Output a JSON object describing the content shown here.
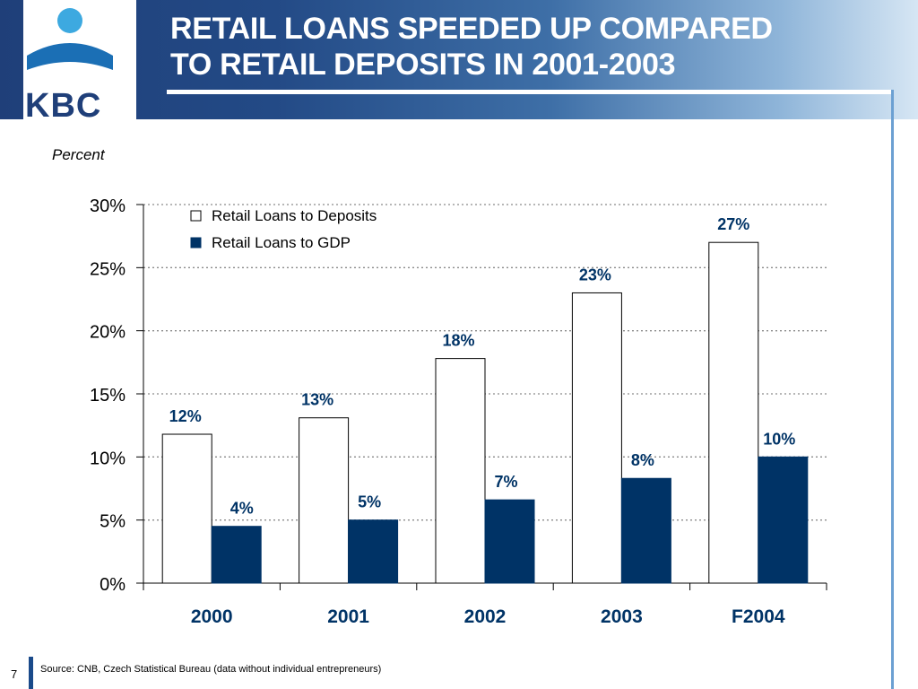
{
  "header": {
    "title_line1": "RETAIL LOANS SPEEDED UP COMPARED",
    "title_line2": "TO RETAIL DEPOSITS IN 2001-2003",
    "logo_text": "KBC"
  },
  "colors": {
    "navy": "#003366",
    "header_dark": "#1f3f79",
    "logo_blue": "#1b6fb5",
    "logo_light": "#3da9e0"
  },
  "chart_data": {
    "type": "bar",
    "ylabel": "Percent",
    "ylim": [
      0,
      30
    ],
    "yticks": [
      0,
      5,
      10,
      15,
      20,
      25,
      30
    ],
    "ytick_labels": [
      "0%",
      "5%",
      "10%",
      "15%",
      "20%",
      "25%",
      "30%"
    ],
    "grid": true,
    "legend_position": "top-left",
    "categories": [
      "2000",
      "2001",
      "2002",
      "2003",
      "F2004"
    ],
    "series": [
      {
        "name": "Retail Loans to Deposits",
        "values": [
          11.8,
          13.1,
          17.8,
          23.0,
          27.0
        ],
        "labels": [
          "12%",
          "13%",
          "18%",
          "23%",
          "27%"
        ],
        "fill": "#ffffff"
      },
      {
        "name": "Retail Loans to GDP",
        "values": [
          4.5,
          5.0,
          6.6,
          8.3,
          10.0
        ],
        "labels": [
          "4%",
          "5%",
          "7%",
          "8%",
          "10%"
        ],
        "fill": "#003366"
      }
    ]
  },
  "footer": {
    "slide_number": "7",
    "source": "Source: CNB, Czech Statistical Bureau (data without individual entrepreneurs)"
  }
}
